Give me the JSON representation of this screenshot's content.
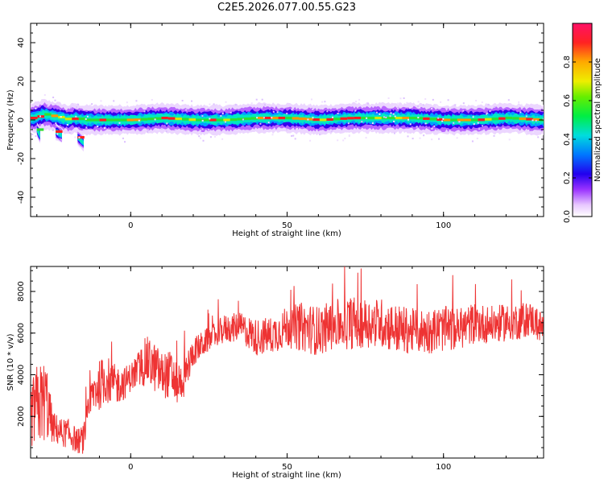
{
  "title": "C2E5.2026.077.00.55.G23",
  "colors": {
    "snr_line": "#ee3333",
    "spectrogram_bg": "#ffffff"
  },
  "chart_data": [
    {
      "type": "heatmap",
      "name": "spectrogram",
      "xlabel": "Height of straight line (km)",
      "ylabel": "Frequency (Hz)",
      "xlim": [
        -32,
        132
      ],
      "ylim": [
        -50,
        50
      ],
      "x_ticks": [
        "0",
        "50",
        "100"
      ],
      "y_ticks": [
        "-40",
        "-20",
        "0",
        "20",
        "40"
      ],
      "colorbar": {
        "label": "Normalized spectral amplitude",
        "range": [
          0,
          1
        ],
        "ticks": [
          "0.0",
          "0.2",
          "0.4",
          "0.6",
          "0.8"
        ]
      },
      "trace": {
        "x": [
          -31,
          -28,
          -25,
          -22,
          -20,
          -18,
          -15,
          -10,
          0,
          10,
          20,
          30,
          40,
          50,
          60,
          70,
          80,
          90,
          100,
          110,
          120,
          131
        ],
        "frequency": [
          1,
          3,
          2,
          1,
          0,
          1,
          0,
          0,
          0,
          1,
          0,
          0,
          1,
          1,
          0,
          1,
          1,
          1,
          0,
          0,
          1,
          0
        ]
      },
      "side_traces": [
        {
          "x": [
            -30,
            -29
          ],
          "frequency": [
            -5,
            -8
          ]
        },
        {
          "x": [
            -24,
            -22
          ],
          "frequency": [
            -6,
            -8
          ]
        },
        {
          "x": [
            -17,
            -15
          ],
          "frequency": [
            -9,
            -12
          ]
        }
      ]
    },
    {
      "type": "line",
      "name": "snr",
      "xlabel": "Height of straight line (km)",
      "ylabel": "SNR (10 * v/v)",
      "xlim": [
        -32,
        132
      ],
      "ylim": [
        0,
        9200
      ],
      "x_ticks": [
        "0",
        "50",
        "100"
      ],
      "y_ticks": [
        "2000",
        "4000",
        "6000",
        "8000"
      ],
      "envelope": {
        "x": [
          -32,
          -30,
          -27,
          -25,
          -22,
          -20,
          -17,
          -15,
          -12,
          -8,
          -5,
          -2,
          0,
          3,
          5,
          8,
          10,
          13,
          15,
          17,
          20,
          25,
          30,
          35,
          40,
          45,
          50,
          55,
          60,
          65,
          70,
          75,
          80,
          85,
          90,
          95,
          100,
          105,
          110,
          115,
          120,
          125,
          128,
          131
        ],
        "mean": [
          2000,
          2500,
          2800,
          1500,
          1200,
          1200,
          800,
          900,
          3200,
          3800,
          3500,
          3600,
          3900,
          4300,
          4700,
          4300,
          4000,
          4000,
          3600,
          3800,
          5100,
          5700,
          6200,
          6300,
          5800,
          5900,
          6300,
          6300,
          6100,
          6400,
          6500,
          6500,
          6500,
          6200,
          6100,
          6100,
          6200,
          6200,
          6500,
          6400,
          6500,
          6600,
          6700,
          6300
        ],
        "spread": [
          1500,
          2000,
          2000,
          800,
          700,
          700,
          600,
          700,
          1200,
          1200,
          1000,
          800,
          700,
          1000,
          1200,
          1200,
          1100,
          1200,
          1100,
          1000,
          700,
          600,
          700,
          700,
          900,
          900,
          1000,
          1200,
          1200,
          1200,
          1300,
          1200,
          1200,
          1200,
          1100,
          1100,
          1100,
          1000,
          1000,
          900,
          900,
          900,
          800,
          800
        ]
      },
      "peak_max": 9200
    }
  ]
}
